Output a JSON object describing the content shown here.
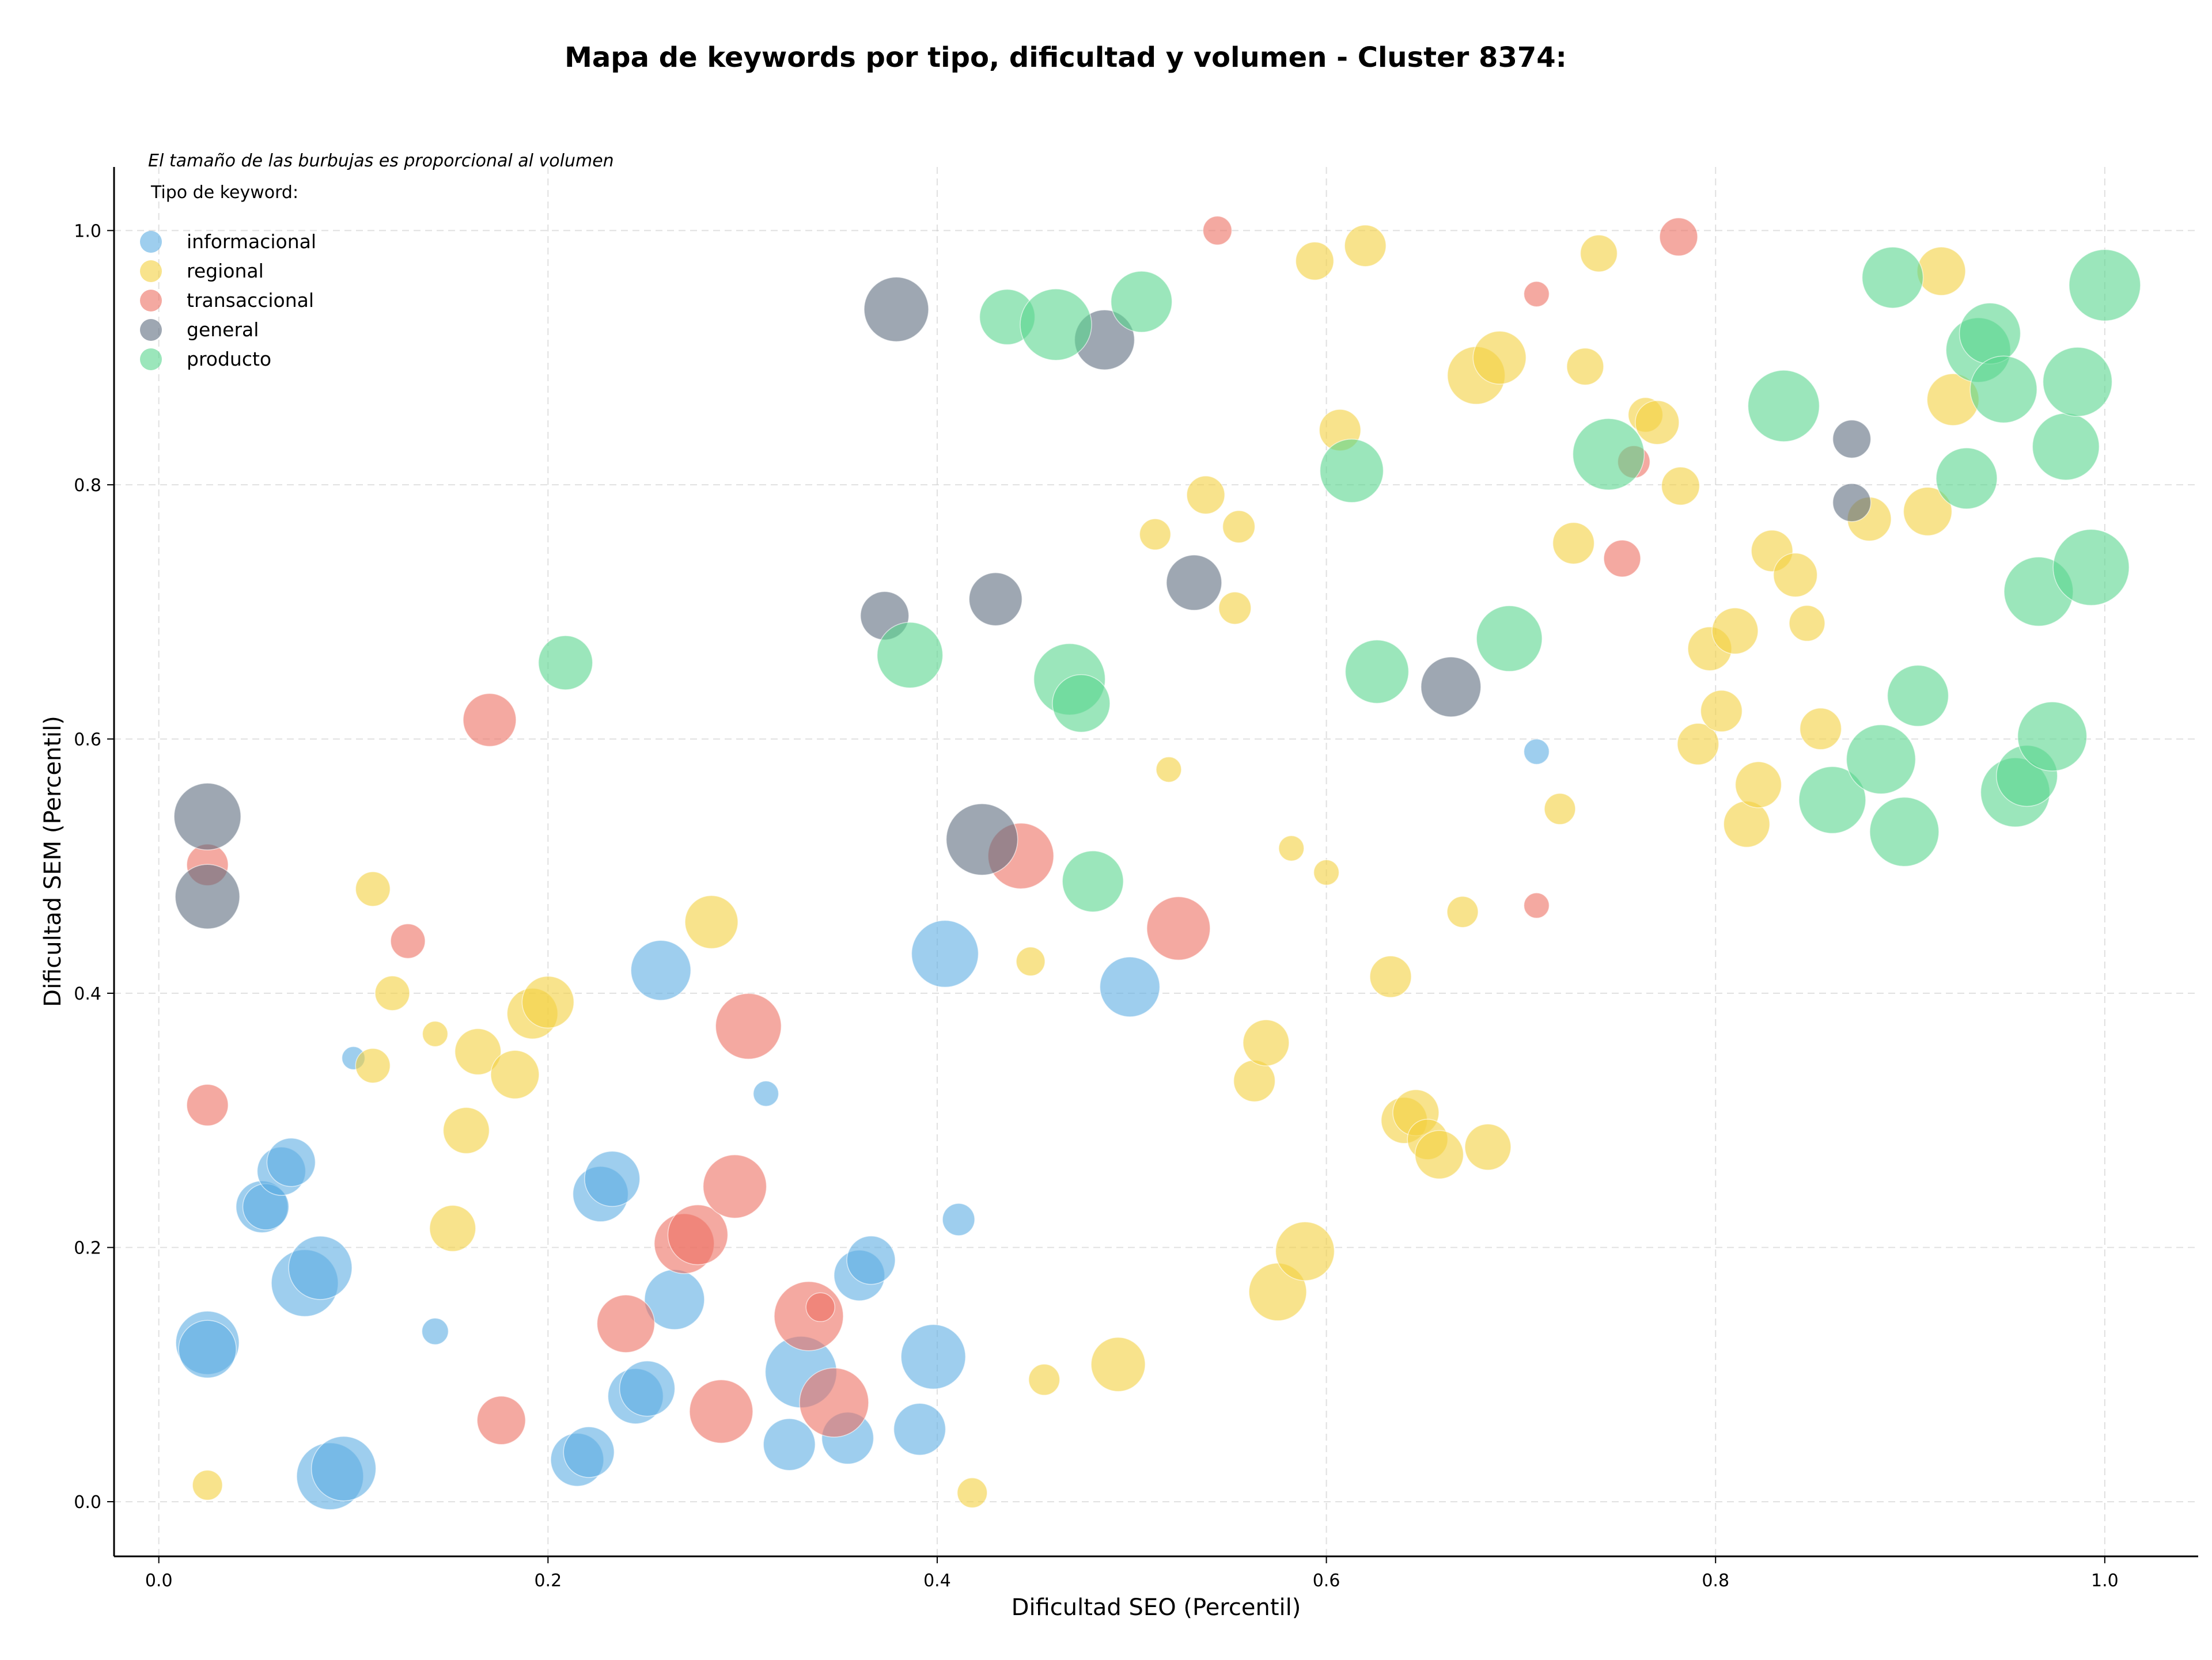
{
  "chart_data": {
    "type": "scatter",
    "title": "Mapa de keywords por tipo, dificultad y volumen - Cluster 8374:",
    "xlabel": "Dificultad SEO (Percentil)",
    "ylabel": "Dificultad SEM (Percentil)",
    "xlim": [
      -0.023,
      1.048
    ],
    "ylim": [
      -0.043,
      1.05
    ],
    "xticks": [
      "0.0",
      "0.2",
      "0.4",
      "0.6",
      "0.8",
      "1.0"
    ],
    "yticks": [
      "0.0",
      "0.2",
      "0.4",
      "0.6",
      "0.8",
      "1.0"
    ],
    "grid": true,
    "note": "El tamaño de las burbujas es proporcional al volumen",
    "legend_title": "Tipo de keyword:",
    "legend_position": "top-left",
    "series": [
      {
        "name": "informacional",
        "color": "#5DADE2",
        "points": [
          [
            0.025,
            0.125,
            55
          ],
          [
            0.025,
            0.12,
            50
          ],
          [
            0.053,
            0.232,
            45
          ],
          [
            0.055,
            0.232,
            40
          ],
          [
            0.063,
            0.26,
            42
          ],
          [
            0.068,
            0.267,
            42
          ],
          [
            0.075,
            0.172,
            58
          ],
          [
            0.083,
            0.184,
            55
          ],
          [
            0.088,
            0.02,
            58
          ],
          [
            0.095,
            0.026,
            56
          ],
          [
            0.1,
            0.349,
            20
          ],
          [
            0.142,
            0.134,
            23
          ],
          [
            0.215,
            0.033,
            46
          ],
          [
            0.221,
            0.039,
            44
          ],
          [
            0.227,
            0.242,
            48
          ],
          [
            0.233,
            0.254,
            48
          ],
          [
            0.245,
            0.083,
            48
          ],
          [
            0.251,
            0.089,
            48
          ],
          [
            0.258,
            0.418,
            52
          ],
          [
            0.265,
            0.159,
            52
          ],
          [
            0.312,
            0.321,
            22
          ],
          [
            0.324,
            0.045,
            45
          ],
          [
            0.33,
            0.102,
            62
          ],
          [
            0.354,
            0.05,
            45
          ],
          [
            0.36,
            0.178,
            44
          ],
          [
            0.366,
            0.19,
            42
          ],
          [
            0.391,
            0.057,
            45
          ],
          [
            0.398,
            0.114,
            56
          ],
          [
            0.404,
            0.431,
            58
          ],
          [
            0.411,
            0.222,
            28
          ],
          [
            0.499,
            0.405,
            52
          ],
          [
            0.708,
            0.59,
            22
          ]
        ]
      },
      {
        "name": "regional",
        "color": "#F4D03F",
        "points": [
          [
            0.025,
            0.013,
            26
          ],
          [
            0.11,
            0.482,
            30
          ],
          [
            0.11,
            0.343,
            30
          ],
          [
            0.12,
            0.4,
            30
          ],
          [
            0.142,
            0.368,
            22
          ],
          [
            0.151,
            0.215,
            40
          ],
          [
            0.158,
            0.292,
            40
          ],
          [
            0.164,
            0.354,
            40
          ],
          [
            0.183,
            0.336,
            42
          ],
          [
            0.192,
            0.384,
            44
          ],
          [
            0.2,
            0.393,
            45
          ],
          [
            0.284,
            0.456,
            46
          ],
          [
            0.418,
            0.007,
            26
          ],
          [
            0.448,
            0.425,
            25
          ],
          [
            0.455,
            0.096,
            27
          ],
          [
            0.493,
            0.108,
            47
          ],
          [
            0.512,
            0.761,
            27
          ],
          [
            0.519,
            0.576,
            22
          ],
          [
            0.538,
            0.792,
            33
          ],
          [
            0.553,
            0.703,
            28
          ],
          [
            0.555,
            0.767,
            28
          ],
          [
            0.563,
            0.331,
            36
          ],
          [
            0.569,
            0.361,
            40
          ],
          [
            0.575,
            0.165,
            50
          ],
          [
            0.582,
            0.514,
            22
          ],
          [
            0.589,
            0.197,
            51
          ],
          [
            0.594,
            0.976,
            33
          ],
          [
            0.6,
            0.495,
            22
          ],
          [
            0.607,
            0.843,
            36
          ],
          [
            0.62,
            0.988,
            36
          ],
          [
            0.633,
            0.413,
            36
          ],
          [
            0.64,
            0.3,
            40
          ],
          [
            0.646,
            0.306,
            40
          ],
          [
            0.652,
            0.285,
            35
          ],
          [
            0.658,
            0.273,
            42
          ],
          [
            0.67,
            0.464,
            27
          ],
          [
            0.677,
            0.886,
            50
          ],
          [
            0.683,
            0.279,
            40
          ],
          [
            0.689,
            0.9,
            46
          ],
          [
            0.72,
            0.545,
            27
          ],
          [
            0.727,
            0.754,
            36
          ],
          [
            0.733,
            0.893,
            32
          ],
          [
            0.74,
            0.982,
            32
          ],
          [
            0.764,
            0.855,
            30
          ],
          [
            0.77,
            0.849,
            38
          ],
          [
            0.782,
            0.799,
            33
          ],
          [
            0.791,
            0.596,
            36
          ],
          [
            0.797,
            0.671,
            38
          ],
          [
            0.803,
            0.622,
            36
          ],
          [
            0.81,
            0.685,
            40
          ],
          [
            0.816,
            0.533,
            40
          ],
          [
            0.822,
            0.564,
            40
          ],
          [
            0.829,
            0.748,
            36
          ],
          [
            0.841,
            0.729,
            38
          ],
          [
            0.847,
            0.691,
            31
          ],
          [
            0.854,
            0.608,
            36
          ],
          [
            0.879,
            0.773,
            38
          ],
          [
            0.909,
            0.779,
            42
          ],
          [
            0.916,
            0.968,
            42
          ],
          [
            0.922,
            0.867,
            45
          ]
        ]
      },
      {
        "name": "transaccional",
        "color": "#EC7063",
        "points": [
          [
            0.025,
            0.312,
            36
          ],
          [
            0.025,
            0.501,
            36
          ],
          [
            0.128,
            0.441,
            30
          ],
          [
            0.17,
            0.615,
            46
          ],
          [
            0.176,
            0.064,
            42
          ],
          [
            0.24,
            0.14,
            50
          ],
          [
            0.27,
            0.203,
            52
          ],
          [
            0.277,
            0.21,
            52
          ],
          [
            0.289,
            0.071,
            55
          ],
          [
            0.296,
            0.248,
            55
          ],
          [
            0.303,
            0.374,
            57
          ],
          [
            0.334,
            0.146,
            60
          ],
          [
            0.34,
            0.153,
            25
          ],
          [
            0.347,
            0.078,
            60
          ],
          [
            0.443,
            0.508,
            57
          ],
          [
            0.524,
            0.451,
            55
          ],
          [
            0.544,
            1.0,
            25
          ],
          [
            0.708,
            0.95,
            22
          ],
          [
            0.708,
            0.469,
            22
          ],
          [
            0.752,
            0.742,
            32
          ],
          [
            0.758,
            0.818,
            28
          ],
          [
            0.781,
            0.995,
            33
          ]
        ]
      },
      {
        "name": "general",
        "color": "#5D6D7E",
        "points": [
          [
            0.025,
            0.539,
            58
          ],
          [
            0.025,
            0.476,
            56
          ],
          [
            0.379,
            0.938,
            56
          ],
          [
            0.373,
            0.697,
            42
          ],
          [
            0.43,
            0.71,
            46
          ],
          [
            0.423,
            0.521,
            62
          ],
          [
            0.486,
            0.914,
            52
          ],
          [
            0.532,
            0.723,
            48
          ],
          [
            0.664,
            0.641,
            52
          ],
          [
            0.87,
            0.836,
            33
          ],
          [
            0.87,
            0.786,
            33
          ]
        ]
      },
      {
        "name": "producto",
        "color": "#58D68D",
        "points": [
          [
            0.209,
            0.66,
            47
          ],
          [
            0.386,
            0.666,
            57
          ],
          [
            0.436,
            0.932,
            48
          ],
          [
            0.461,
            0.926,
            62
          ],
          [
            0.468,
            0.647,
            62
          ],
          [
            0.474,
            0.628,
            50
          ],
          [
            0.48,
            0.488,
            53
          ],
          [
            0.505,
            0.944,
            53
          ],
          [
            0.613,
            0.811,
            55
          ],
          [
            0.626,
            0.653,
            55
          ],
          [
            0.694,
            0.679,
            57
          ],
          [
            0.745,
            0.824,
            62
          ],
          [
            0.835,
            0.862,
            62
          ],
          [
            0.86,
            0.552,
            58
          ],
          [
            0.885,
            0.584,
            60
          ],
          [
            0.891,
            0.963,
            53
          ],
          [
            0.897,
            0.527,
            60
          ],
          [
            0.904,
            0.634,
            53
          ],
          [
            0.929,
            0.805,
            53
          ],
          [
            0.935,
            0.906,
            56
          ],
          [
            0.941,
            0.919,
            53
          ],
          [
            0.948,
            0.875,
            58
          ],
          [
            0.954,
            0.558,
            60
          ],
          [
            0.96,
            0.571,
            53
          ],
          [
            0.966,
            0.716,
            60
          ],
          [
            0.973,
            0.602,
            60
          ],
          [
            0.98,
            0.83,
            58
          ],
          [
            0.986,
            0.881,
            60
          ],
          [
            0.993,
            0.735,
            66
          ],
          [
            1.0,
            0.957,
            62
          ]
        ]
      }
    ]
  }
}
